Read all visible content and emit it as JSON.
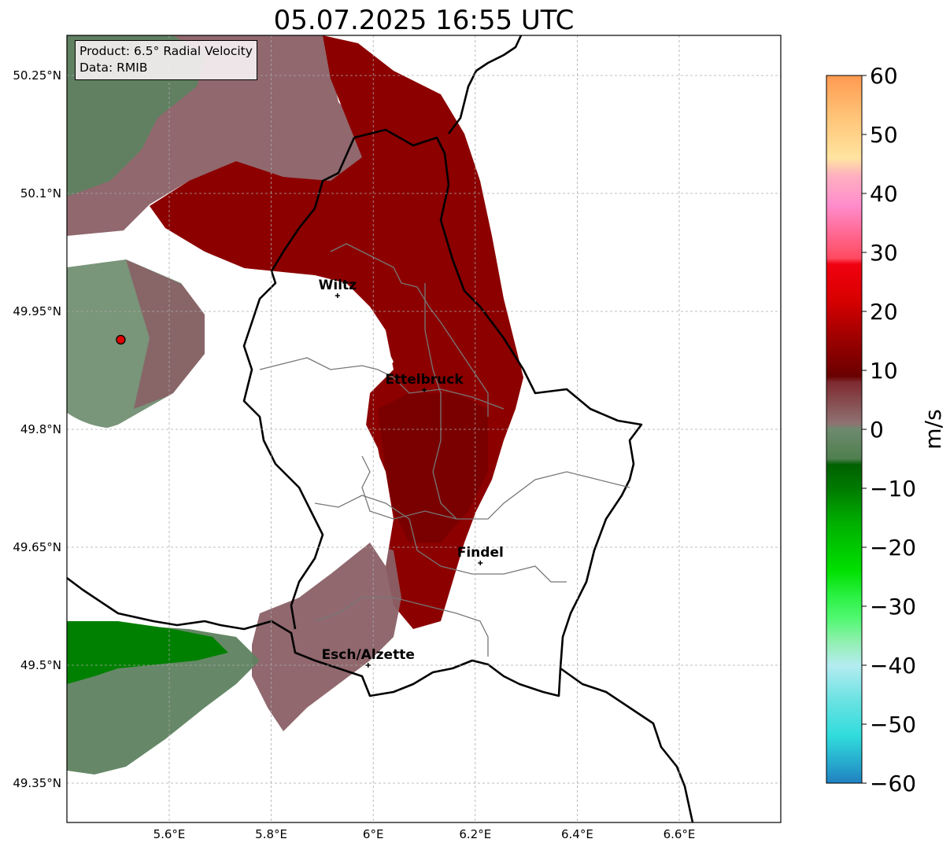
{
  "title": "05.07.2025 16:55 UTC",
  "info": {
    "product": "Product: 6.5° Radial Velocity",
    "source": "Data: RMIB"
  },
  "axes": {
    "x_ticks": [
      {
        "value": 5.6,
        "label": "5.6°E"
      },
      {
        "value": 5.8,
        "label": "5.8°E"
      },
      {
        "value": 6.0,
        "label": "6°E"
      },
      {
        "value": 6.2,
        "label": "6.2°E"
      },
      {
        "value": 6.4,
        "label": "6.4°E"
      },
      {
        "value": 6.6,
        "label": "6.6°E"
      }
    ],
    "y_ticks": [
      {
        "value": 50.25,
        "label": "50.25°N"
      },
      {
        "value": 50.1,
        "label": "50.1°N"
      },
      {
        "value": 49.95,
        "label": "49.95°N"
      },
      {
        "value": 49.8,
        "label": "49.8°N"
      },
      {
        "value": 49.65,
        "label": "49.65°N"
      },
      {
        "value": 49.5,
        "label": "49.5°N"
      },
      {
        "value": 49.35,
        "label": "49.35°N"
      }
    ],
    "lon_range": [
      5.4,
      6.8
    ],
    "lat_range": [
      49.3,
      50.3
    ],
    "grid": true
  },
  "cities": [
    {
      "name": "Wiltz",
      "lon": 5.93,
      "lat": 49.97
    },
    {
      "name": "Ettelbruck",
      "lon": 6.1,
      "lat": 49.85
    },
    {
      "name": "Findel",
      "lon": 6.21,
      "lat": 49.63
    },
    {
      "name": "Esch/Alzette",
      "lon": 5.99,
      "lat": 49.5
    }
  ],
  "radar_site": {
    "lon": 5.505,
    "lat": 49.914,
    "color": "#e00000"
  },
  "colorbar": {
    "label": "m/s",
    "min": -60,
    "max": 60,
    "ticks": [
      {
        "value": 60,
        "label": "60"
      },
      {
        "value": 50,
        "label": "50"
      },
      {
        "value": 40,
        "label": "40"
      },
      {
        "value": 30,
        "label": "30"
      },
      {
        "value": 20,
        "label": "20"
      },
      {
        "value": 10,
        "label": "10"
      },
      {
        "value": 0,
        "label": "0"
      },
      {
        "value": -10,
        "label": "−10"
      },
      {
        "value": -20,
        "label": "−20"
      },
      {
        "value": -30,
        "label": "−30"
      },
      {
        "value": -40,
        "label": "−40"
      },
      {
        "value": -50,
        "label": "−50"
      },
      {
        "value": -60,
        "label": "−60"
      }
    ],
    "stops": [
      {
        "value": -60,
        "color": "#2080c0"
      },
      {
        "value": -56,
        "color": "#28b0d0"
      },
      {
        "value": -52,
        "color": "#30dcdc"
      },
      {
        "value": -46,
        "color": "#6ae2e2"
      },
      {
        "value": -40,
        "color": "#b4ecf0"
      },
      {
        "value": -36,
        "color": "#90f0b0"
      },
      {
        "value": -32,
        "color": "#50f870"
      },
      {
        "value": -28,
        "color": "#28f040"
      },
      {
        "value": -24,
        "color": "#00e000"
      },
      {
        "value": -16,
        "color": "#00b000"
      },
      {
        "value": -10,
        "color": "#007a00"
      },
      {
        "value": -6,
        "color": "#006000"
      },
      {
        "value": -5,
        "color": "#4f7f4f"
      },
      {
        "value": 0,
        "color": "#6e8a6e"
      },
      {
        "value": 1,
        "color": "#907272"
      },
      {
        "value": 8,
        "color": "#7e2a30"
      },
      {
        "value": 9,
        "color": "#6a0000"
      },
      {
        "value": 15,
        "color": "#9a0000"
      },
      {
        "value": 22,
        "color": "#d80000"
      },
      {
        "value": 28,
        "color": "#f00010"
      },
      {
        "value": 29,
        "color": "#ff4a60"
      },
      {
        "value": 38,
        "color": "#ff8ccc"
      },
      {
        "value": 43,
        "color": "#ffb0c0"
      },
      {
        "value": 46,
        "color": "#ffe4a0"
      },
      {
        "value": 53,
        "color": "#ffc478"
      },
      {
        "value": 60,
        "color": "#ff9a50"
      }
    ]
  }
}
